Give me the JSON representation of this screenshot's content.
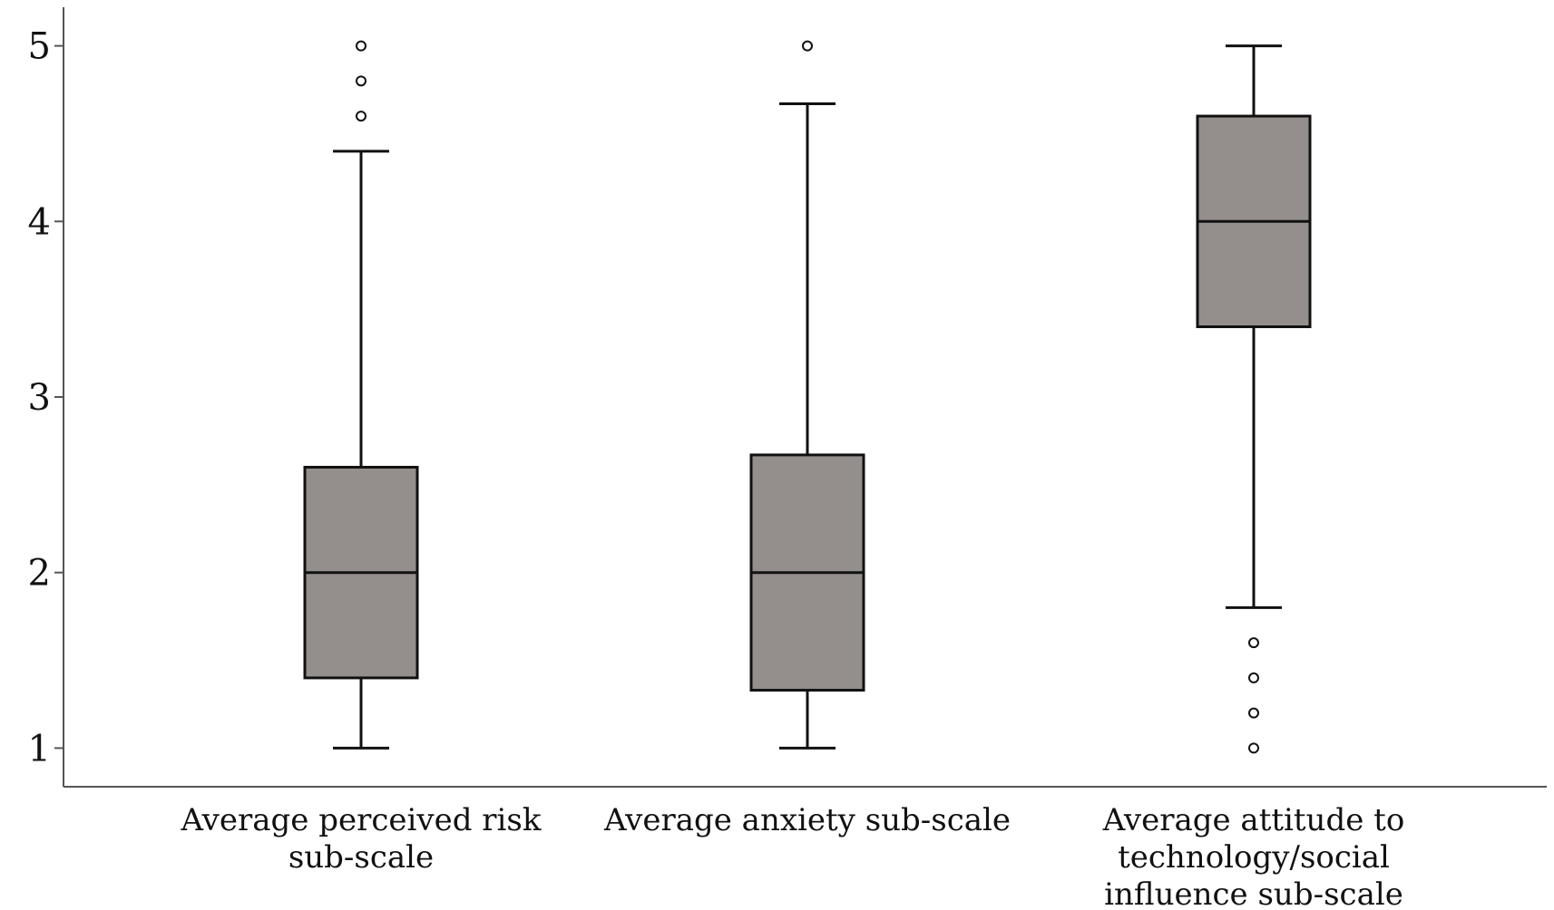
{
  "chart_data": {
    "type": "box",
    "title": "",
    "xlabel": "",
    "ylabel": "",
    "ylim": [
      0.78,
      5.22
    ],
    "yticks": [
      1,
      2,
      3,
      4,
      5
    ],
    "ytick_labels": [
      "1",
      "2",
      "3",
      "4",
      "5"
    ],
    "grid": false,
    "categories": [
      {
        "label_lines": [
          "Average perceived risk",
          "sub-scale"
        ],
        "whisker_low": 1.0,
        "q1": 1.4,
        "median": 2.0,
        "q3": 2.6,
        "whisker_high": 4.4,
        "outliers": [
          4.6,
          4.8,
          5.0
        ]
      },
      {
        "label_lines": [
          "Average anxiety sub-scale"
        ],
        "whisker_low": 1.0,
        "q1": 1.33,
        "median": 2.0,
        "q3": 2.67,
        "whisker_high": 4.67,
        "outliers": [
          5.0
        ]
      },
      {
        "label_lines": [
          "Average attitude to",
          "technology/social",
          "influence sub-scale"
        ],
        "whisker_low": 1.8,
        "q1": 3.4,
        "median": 4.0,
        "q3": 4.6,
        "whisker_high": 5.0,
        "outliers": [
          1.0,
          1.2,
          1.4,
          1.6
        ]
      }
    ],
    "colors": {
      "box_fill": "#948f8d",
      "stroke": "#111111",
      "outlier_fill": "#ffffff",
      "axis": "#555555"
    }
  }
}
